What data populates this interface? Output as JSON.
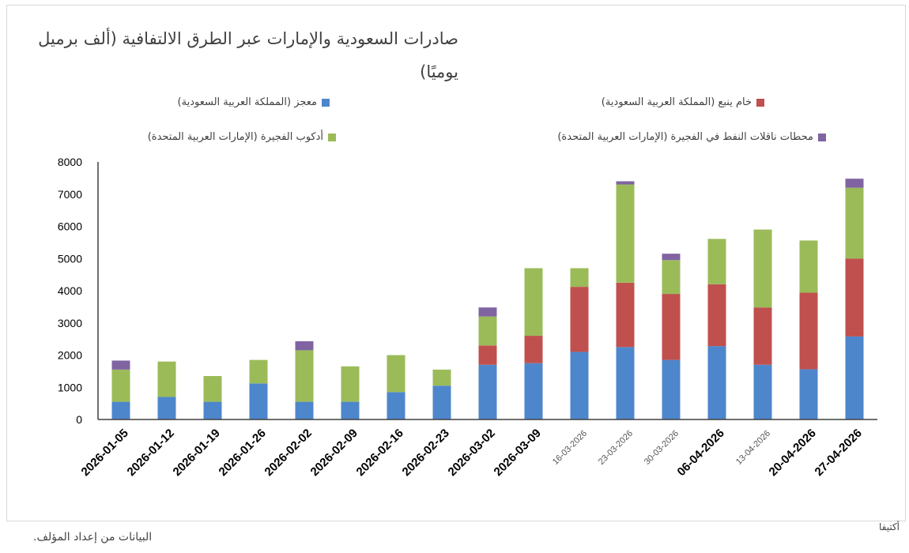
{
  "chart_data": {
    "type": "bar",
    "stacked": true,
    "title": "صادرات السعودية والإمارات عبر الطرق الالتفافية (ألف برميل يوميًا)",
    "categories": [
      "2026-01-05",
      "2026-01-12",
      "2026-01-19",
      "2026-01-26",
      "2026-02-02",
      "2026-02-09",
      "2026-02-16",
      "2026-02-23",
      "2026-03-02",
      "2026-03-09",
      "16-03-2026",
      "23-03-2026",
      "30-03-2026",
      "06-04-2026",
      "13-04-2026",
      "20-04-2026",
      "27-04-2026"
    ],
    "series": [
      {
        "name": "معجز (المملكة العربية السعودية)",
        "color": "#4e86cc",
        "values": [
          550,
          700,
          550,
          1120,
          550,
          550,
          850,
          1050,
          1700,
          1750,
          2100,
          2250,
          1850,
          2280,
          1700,
          1560,
          2580
        ]
      },
      {
        "name": "خام ينبع (المملكة العربية السعودية)",
        "color": "#c0504d",
        "values": [
          0,
          0,
          0,
          0,
          0,
          0,
          0,
          0,
          600,
          850,
          2020,
          2000,
          2050,
          1920,
          1780,
          2380,
          2420
        ]
      },
      {
        "name": "أدكوب الفجيرة (الإمارات العربية المتحدة)",
        "color": "#9bbb59",
        "values": [
          1000,
          1100,
          800,
          730,
          1600,
          1100,
          1150,
          500,
          900,
          2100,
          580,
          3050,
          1050,
          1410,
          2420,
          1620,
          2200
        ]
      },
      {
        "name": "محطات ناقلات النفط في الفجيرة (الإمارات العربية المتحدة)",
        "color": "#8064a2",
        "values": [
          280,
          0,
          0,
          0,
          280,
          0,
          0,
          0,
          280,
          0,
          0,
          100,
          200,
          0,
          0,
          0,
          280
        ]
      }
    ],
    "ylim": [
      0,
      8000
    ],
    "yticks": [
      0,
      1000,
      2000,
      3000,
      4000,
      5000,
      6000,
      7000,
      8000
    ],
    "grid": false,
    "legend": "top"
  },
  "footer": {
    "source_note": "البيانات من إعداد المؤلف.",
    "brand": "أكتيفا"
  }
}
